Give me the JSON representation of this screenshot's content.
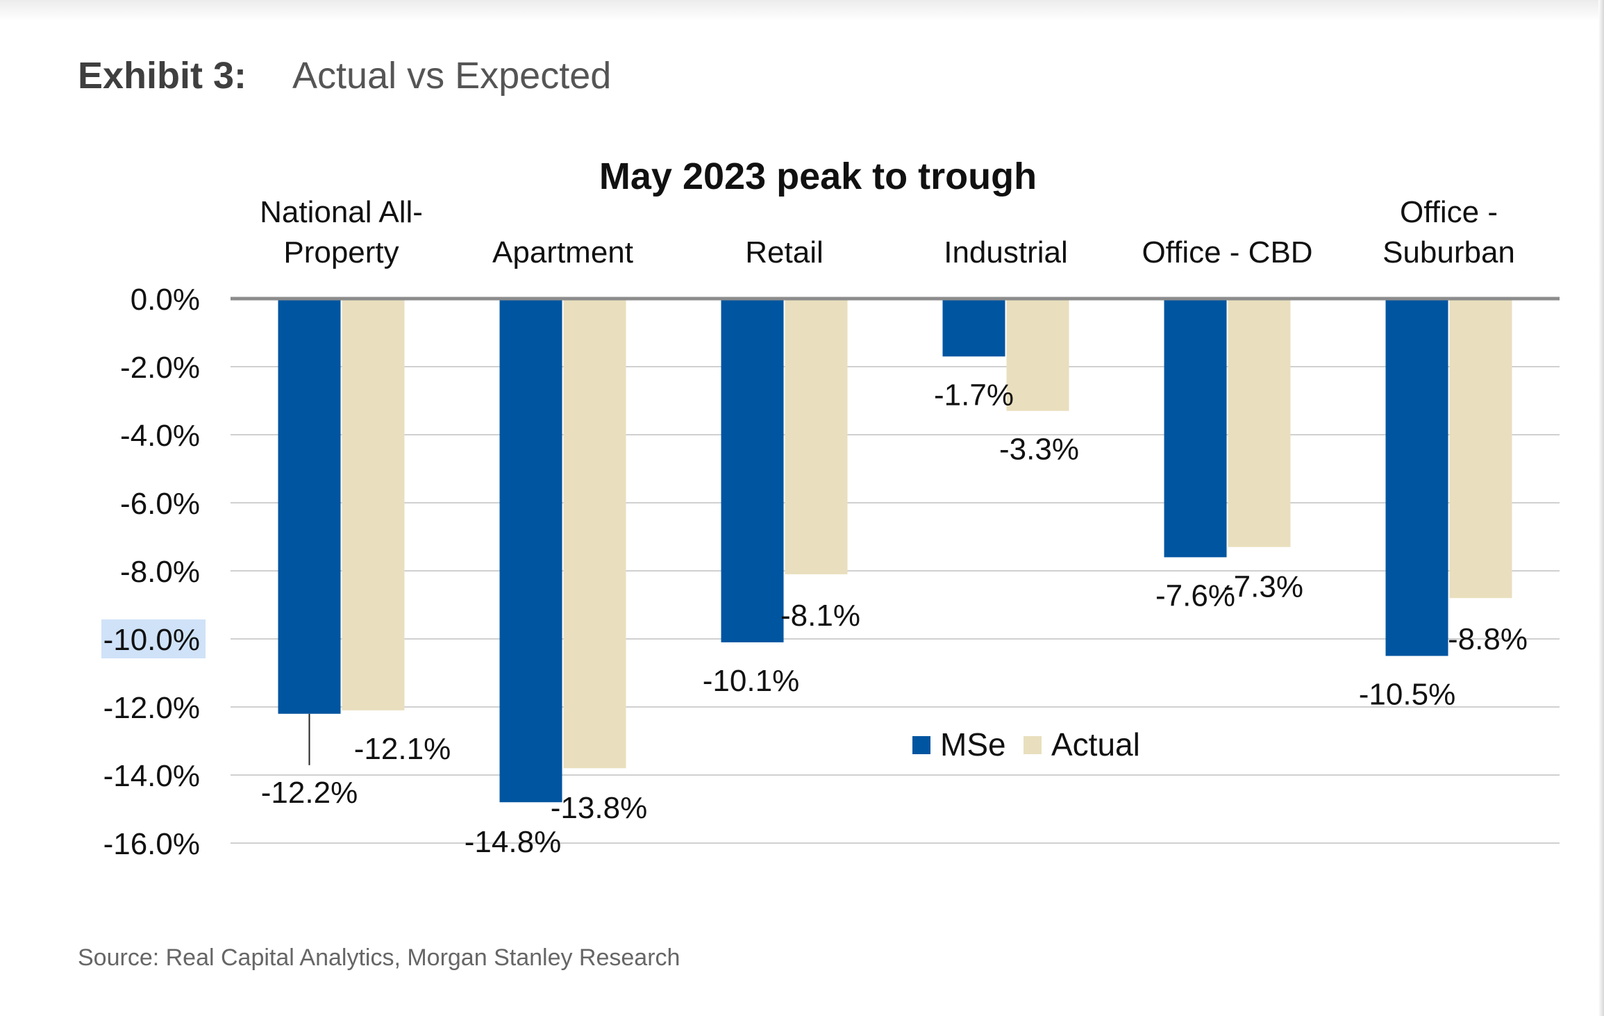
{
  "header": {
    "exhibit_label": "Exhibit 3:",
    "exhibit_title": "Actual vs Expected"
  },
  "footer": {
    "source": "Source: Real Capital Analytics, Morgan Stanley Research"
  },
  "colors": {
    "mse": "#0055A0",
    "actual": "#E9DFBE",
    "gridline": "#D0D0D0",
    "zero_line": "#8C8C8C",
    "highlight": "#CFE2F8"
  },
  "chart_data": {
    "type": "bar",
    "title": "May 2023 peak to trough",
    "xlabel": "",
    "ylabel": "",
    "categories": [
      "National All-Property",
      "Apartment",
      "Retail",
      "Industrial",
      "Office - CBD",
      "Office - Suburban"
    ],
    "category_label_lines": [
      [
        "National All-",
        "Property"
      ],
      [
        "Apartment"
      ],
      [
        "Retail"
      ],
      [
        "Industrial"
      ],
      [
        "Office - CBD"
      ],
      [
        "Office -",
        "Suburban"
      ]
    ],
    "series": [
      {
        "name": "MSe",
        "values": [
          -12.2,
          -14.8,
          -10.1,
          -1.7,
          -7.6,
          -10.5
        ],
        "labels": [
          "-12.2%",
          "-14.8%",
          "-10.1%",
          "-1.7%",
          "-7.6%",
          "-10.5%"
        ]
      },
      {
        "name": "Actual",
        "values": [
          -12.1,
          -13.8,
          -8.1,
          -3.3,
          -7.3,
          -8.8
        ],
        "labels": [
          "-12.1%",
          "-13.8%",
          "-8.1%",
          "-3.3%",
          "-7.3%",
          "-8.8%"
        ]
      }
    ],
    "ylim": [
      -16,
      0
    ],
    "yticks": [
      0,
      -2,
      -4,
      -6,
      -8,
      -10,
      -12,
      -14,
      -16
    ],
    "ytick_labels": [
      "0.0%",
      "-2.0%",
      "-4.0%",
      "-6.0%",
      "-8.0%",
      "-10.0%",
      "-12.0%",
      "-14.0%",
      "-16.0%"
    ],
    "highlighted_ytick": "-10.0%",
    "grid": true,
    "category_axis_position": "top",
    "legend_position": "center-right"
  }
}
